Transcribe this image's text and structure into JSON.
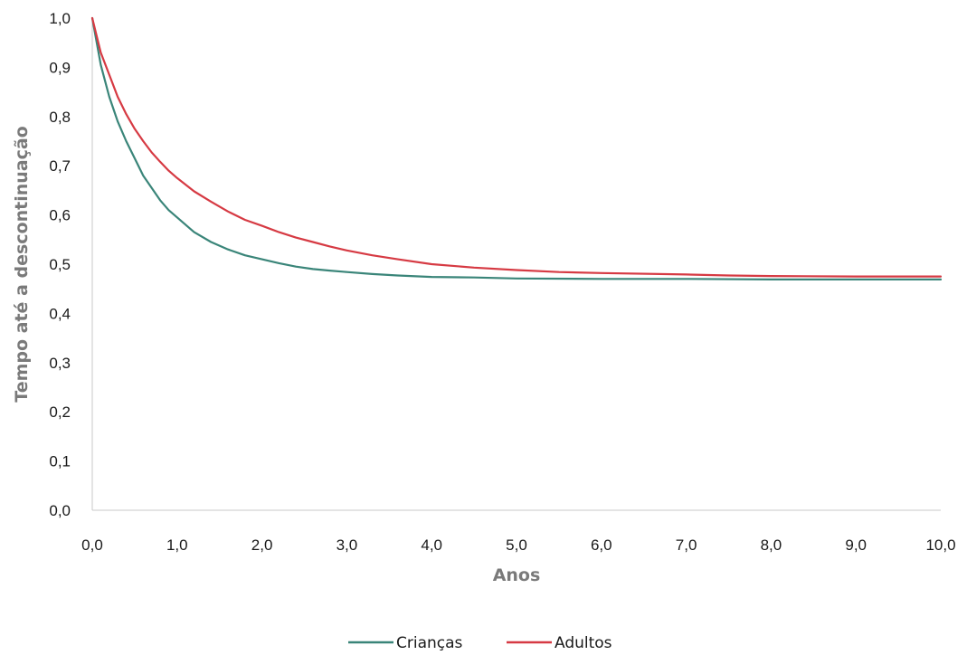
{
  "chart_data": {
    "type": "line",
    "title": "",
    "xlabel": "Anos",
    "ylabel": "Tempo até a descontinuação",
    "xlim": [
      0,
      10
    ],
    "ylim": [
      0,
      1
    ],
    "x_ticks": [
      "0,0",
      "1,0",
      "2,0",
      "3,0",
      "4,0",
      "5,0",
      "6,0",
      "7,0",
      "8,0",
      "9,0",
      "10,0"
    ],
    "y_ticks": [
      "0,0",
      "0,1",
      "0,2",
      "0,3",
      "0,4",
      "0,5",
      "0,6",
      "0,7",
      "0,8",
      "0,9",
      "1,0"
    ],
    "grid": false,
    "legend_position": "bottom",
    "series": [
      {
        "name": "Crianças",
        "color": "#3a8579",
        "x": [
          0,
          0.1,
          0.2,
          0.3,
          0.4,
          0.5,
          0.6,
          0.7,
          0.8,
          0.9,
          1.0,
          1.2,
          1.4,
          1.6,
          1.8,
          2.0,
          2.2,
          2.4,
          2.6,
          2.8,
          3.0,
          3.3,
          3.6,
          4.0,
          4.5,
          5.0,
          6.0,
          7.0,
          8.0,
          9.0,
          10.0
        ],
        "values": [
          1.0,
          0.905,
          0.84,
          0.79,
          0.75,
          0.715,
          0.68,
          0.655,
          0.63,
          0.61,
          0.595,
          0.565,
          0.545,
          0.53,
          0.518,
          0.51,
          0.502,
          0.495,
          0.49,
          0.487,
          0.484,
          0.48,
          0.477,
          0.474,
          0.473,
          0.471,
          0.47,
          0.47,
          0.469,
          0.469,
          0.469
        ]
      },
      {
        "name": "Adultos",
        "color": "#d63a43",
        "x": [
          0,
          0.1,
          0.2,
          0.3,
          0.4,
          0.5,
          0.6,
          0.7,
          0.8,
          0.9,
          1.0,
          1.2,
          1.4,
          1.6,
          1.8,
          2.0,
          2.2,
          2.4,
          2.6,
          2.8,
          3.0,
          3.3,
          3.6,
          4.0,
          4.5,
          5.0,
          5.5,
          6.0,
          7.0,
          7.5,
          8.0,
          9.0,
          10.0
        ],
        "values": [
          1.0,
          0.93,
          0.885,
          0.84,
          0.805,
          0.775,
          0.75,
          0.727,
          0.708,
          0.69,
          0.675,
          0.648,
          0.627,
          0.607,
          0.59,
          0.578,
          0.565,
          0.554,
          0.545,
          0.536,
          0.528,
          0.518,
          0.51,
          0.5,
          0.493,
          0.488,
          0.484,
          0.482,
          0.479,
          0.477,
          0.476,
          0.475,
          0.475
        ]
      }
    ]
  }
}
